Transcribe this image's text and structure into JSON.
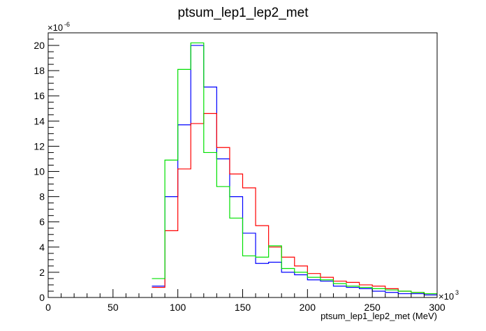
{
  "chart_data": {
    "type": "histogram-step",
    "title": "ptsum_lep1_lep2_met",
    "xlabel": "ptsum_lep1_lep2_met (MeV)",
    "x_multiplier": {
      "base": "×10",
      "exp": "3"
    },
    "y_multiplier": {
      "base": "×10",
      "exp": "-6"
    },
    "xlim": [
      0,
      300
    ],
    "ylim": [
      0,
      21
    ],
    "x_ticks": [
      0,
      50,
      100,
      150,
      200,
      250,
      300
    ],
    "y_ticks": [
      0,
      2,
      4,
      6,
      8,
      10,
      12,
      14,
      16,
      18,
      20
    ],
    "bin_edges": [
      80,
      90,
      100,
      110,
      120,
      130,
      140,
      150,
      160,
      170,
      180,
      190,
      200,
      210,
      220,
      230,
      240,
      250,
      260,
      270,
      280,
      290,
      300
    ],
    "series": [
      {
        "color": "#0000ff",
        "values": [
          0.9,
          8.0,
          13.7,
          20.0,
          16.7,
          11.0,
          8.0,
          5.1,
          2.7,
          2.8,
          2.0,
          1.8,
          1.4,
          1.3,
          0.9,
          0.8,
          0.7,
          0.5,
          0.4,
          0.3,
          0.3,
          0.2
        ]
      },
      {
        "color": "#ff0000",
        "values": [
          0.8,
          5.3,
          10.2,
          13.8,
          14.6,
          11.9,
          9.8,
          8.7,
          5.7,
          4.0,
          3.2,
          2.5,
          1.9,
          1.6,
          1.3,
          1.2,
          1.0,
          0.9,
          0.7,
          0.5,
          0.4,
          0.3
        ]
      },
      {
        "color": "#00e000",
        "values": [
          1.5,
          10.9,
          18.1,
          20.2,
          11.5,
          8.8,
          6.3,
          3.3,
          3.2,
          4.1,
          2.3,
          2.0,
          1.6,
          1.4,
          1.1,
          0.9,
          0.8,
          0.7,
          0.6,
          0.5,
          0.4,
          0.3
        ]
      }
    ]
  }
}
